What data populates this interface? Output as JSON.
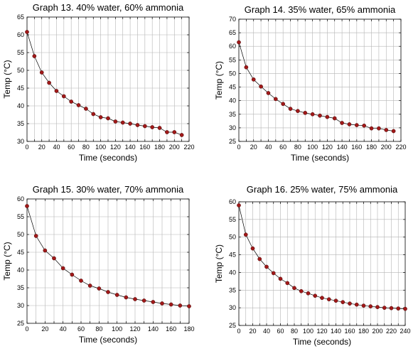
{
  "chart_data": [
    {
      "type": "scatter",
      "title": "Graph 13. 40% water, 60% ammonia",
      "xlabel": "Time (seconds)",
      "ylabel": "Temp (°C)",
      "xlim": [
        0,
        220
      ],
      "ylim": [
        30,
        65
      ],
      "xticks": [
        0,
        20,
        40,
        60,
        80,
        100,
        120,
        140,
        160,
        180,
        200,
        220
      ],
      "yticks": [
        30,
        35,
        40,
        45,
        50,
        55,
        60,
        65
      ],
      "xgrid_step": 10,
      "ygrid_step": 5,
      "grid": true,
      "connected": true,
      "x": [
        0,
        10,
        20,
        30,
        40,
        50,
        60,
        70,
        80,
        90,
        100,
        110,
        120,
        130,
        140,
        150,
        160,
        170,
        180,
        190,
        200,
        210
      ],
      "y": [
        60.8,
        54.0,
        49.4,
        46.5,
        44.2,
        42.7,
        41.2,
        40.2,
        39.2,
        37.7,
        36.8,
        36.5,
        35.6,
        35.3,
        35.0,
        34.6,
        34.3,
        34.0,
        33.8,
        32.6,
        32.6,
        31.8
      ]
    },
    {
      "type": "scatter",
      "title": "Graph 14. 35% water, 65% ammonia",
      "xlabel": "Time (seconds)",
      "ylabel": "Temp (°C)",
      "xlim": [
        0,
        220
      ],
      "ylim": [
        25,
        70
      ],
      "xticks": [
        0,
        20,
        40,
        60,
        80,
        100,
        120,
        140,
        160,
        180,
        200,
        220
      ],
      "yticks": [
        25,
        30,
        35,
        40,
        45,
        50,
        55,
        60,
        65,
        70
      ],
      "xgrid_step": 10,
      "ygrid_step": 5,
      "grid": true,
      "connected": true,
      "x": [
        0,
        10,
        20,
        30,
        40,
        50,
        60,
        70,
        80,
        90,
        100,
        110,
        120,
        130,
        140,
        150,
        160,
        170,
        180,
        190,
        200,
        210
      ],
      "y": [
        61.5,
        52.3,
        47.8,
        45.2,
        42.8,
        40.6,
        38.8,
        37.0,
        36.2,
        35.5,
        35.0,
        34.5,
        34.0,
        33.5,
        31.8,
        31.3,
        31.0,
        30.8,
        29.8,
        29.8,
        29.2,
        28.8
      ]
    },
    {
      "type": "scatter",
      "title": "Graph 15. 30% water, 70% ammonia",
      "xlabel": "Time (seconds)",
      "ylabel": "Temp (°C)",
      "xlim": [
        0,
        180
      ],
      "ylim": [
        25,
        60
      ],
      "xticks": [
        0,
        20,
        40,
        60,
        80,
        100,
        120,
        140,
        160,
        180
      ],
      "yticks": [
        25,
        30,
        35,
        40,
        45,
        50,
        55,
        60
      ],
      "xgrid_step": 10,
      "ygrid_step": 5,
      "grid": true,
      "connected": true,
      "x": [
        0,
        10,
        20,
        30,
        40,
        50,
        60,
        70,
        80,
        90,
        100,
        110,
        120,
        130,
        140,
        150,
        160,
        170,
        180
      ],
      "y": [
        58.0,
        49.6,
        45.5,
        43.3,
        40.5,
        38.7,
        37.0,
        35.6,
        34.8,
        33.8,
        33.0,
        32.3,
        31.8,
        31.4,
        31.0,
        30.6,
        30.3,
        30.0,
        29.8
      ]
    },
    {
      "type": "scatter",
      "title": "Graph 16. 25% water, 75% ammonia",
      "xlabel": "Time (seconds)",
      "ylabel": "Temp (°C)",
      "xlim": [
        0,
        240
      ],
      "ylim": [
        25,
        60
      ],
      "xticks": [
        0,
        20,
        40,
        60,
        80,
        100,
        120,
        140,
        160,
        180,
        200,
        220,
        240
      ],
      "yticks": [
        25,
        30,
        35,
        40,
        45,
        50,
        55,
        60
      ],
      "xgrid_step": 10,
      "ygrid_step": 5,
      "grid": true,
      "connected": true,
      "x": [
        0,
        10,
        20,
        30,
        40,
        50,
        60,
        70,
        80,
        90,
        100,
        110,
        120,
        130,
        140,
        150,
        160,
        170,
        180,
        190,
        200,
        210,
        220,
        230,
        240
      ],
      "y": [
        59.0,
        50.7,
        46.8,
        43.8,
        41.6,
        39.8,
        38.2,
        37.0,
        35.6,
        34.7,
        34.1,
        33.4,
        32.8,
        32.4,
        32.0,
        31.6,
        31.2,
        30.9,
        30.6,
        30.4,
        30.2,
        30.0,
        29.9,
        29.8,
        29.7
      ]
    }
  ]
}
